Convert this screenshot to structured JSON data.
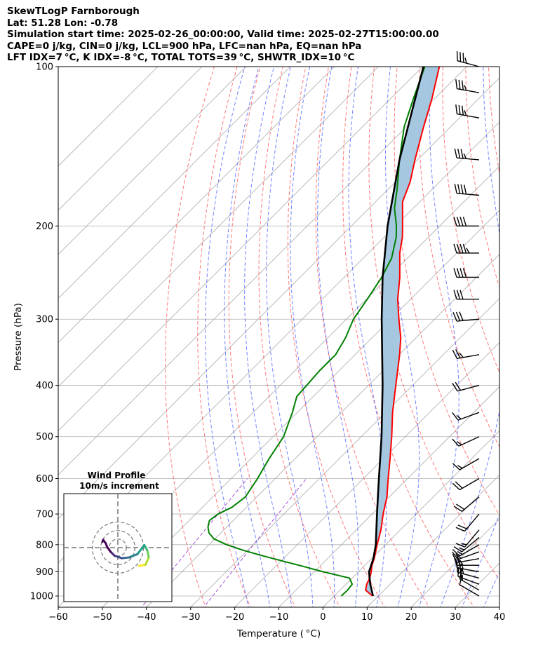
{
  "header": {
    "line1": "SkewTLogP Farnborough",
    "line2": "Lat: 51.28   Lon: -0.78",
    "line3": "Simulation start time: 2025-02-26_00:00:00, Valid time: 2025-02-27T15:00:00.00",
    "line4": "CAPE=0 j/kg, CIN=0 j/kg, LCL=900 hPa, LFC=nan hPa, EQ=nan hPa",
    "line5": "LFT IDX=7 °C, K IDX=-8 °C, TOTAL TOTS=39 °C, SHWTR_IDX=10 °C"
  },
  "chart_data": {
    "type": "skewt-logp",
    "xlabel": "Temperature ( °C)",
    "ylabel": "Pressure (hPa)",
    "xlim": [
      -60,
      40
    ],
    "ylim": [
      1050,
      100
    ],
    "x_ticks": [
      "−60",
      "−50",
      "−40",
      "−30",
      "−20",
      "−10",
      "0",
      "10",
      "20",
      "30",
      "40"
    ],
    "x_tick_values": [
      -60,
      -50,
      -40,
      -30,
      -20,
      -10,
      0,
      10,
      20,
      30,
      40
    ],
    "y_ticks": [
      1000,
      900,
      800,
      700,
      600,
      500,
      400,
      300,
      200,
      100
    ],
    "y_scale": "log",
    "colors": {
      "temperature": "#ff0000",
      "dewpoint": "#008000",
      "parcel": "#000000",
      "shading": "#a0c4de",
      "dry_adiabat": "#ff6060",
      "moist_adiabat": "#5a6cff",
      "isotherm": "#aaaaaa",
      "mixing_ratio": "#9933cc"
    },
    "temperature": {
      "pressure": [
        1000,
        975,
        950,
        925,
        900,
        875,
        850,
        800,
        750,
        700,
        650,
        600,
        550,
        500,
        450,
        400,
        350,
        325,
        300,
        275,
        250,
        225,
        210,
        200,
        180,
        165,
        150,
        130,
        115,
        100
      ],
      "values": [
        8.7,
        5.8,
        4.7,
        4.0,
        2.9,
        1.6,
        0.6,
        -1.9,
        -4.4,
        -7.5,
        -10.5,
        -14.4,
        -18.5,
        -23.1,
        -28.4,
        -33.8,
        -39.9,
        -43.5,
        -48.1,
        -52.9,
        -57.4,
        -62.9,
        -65.9,
        -68.4,
        -73.9,
        -76.7,
        -80.6,
        -86.1,
        -90.6,
        -96.2
      ]
    },
    "dewpoint": {
      "pressure": [
        1000,
        975,
        950,
        925,
        900,
        880,
        860,
        840,
        820,
        800,
        780,
        760,
        740,
        720,
        700,
        680,
        650,
        600,
        550,
        500,
        450,
        420,
        400,
        375,
        350,
        325,
        300,
        275,
        250,
        230,
        210,
        200,
        185,
        170,
        150,
        130,
        115,
        100
      ],
      "values": [
        1.6,
        1.7,
        1.4,
        -0.6,
        -8.0,
        -13.5,
        -19.3,
        -25.2,
        -30.9,
        -36.0,
        -40.2,
        -42.7,
        -44.3,
        -45.4,
        -44.9,
        -43.3,
        -42.6,
        -44.0,
        -45.9,
        -47.6,
        -51.1,
        -53.7,
        -54.0,
        -54.4,
        -54.4,
        -56.0,
        -58.4,
        -59.8,
        -61.5,
        -63.6,
        -67.3,
        -69.8,
        -74.3,
        -78.1,
        -84.1,
        -90.5,
        -94.8,
        -99.5
      ]
    },
    "parcel": {
      "pressure": [
        1000,
        950,
        900,
        850,
        800,
        700,
        600,
        500,
        400,
        300,
        250,
        200,
        150,
        100
      ],
      "values": [
        8.8,
        5.5,
        2.4,
        0.4,
        -2.2,
        -8.9,
        -16.5,
        -25.4,
        -36.8,
        -52.0,
        -61.3,
        -71.8,
        -84.1,
        -99.8
      ]
    },
    "cape_cin_shading": "between parcel and temperature profiles",
    "wind_barbs": {
      "pressure": [
        1000,
        975,
        950,
        925,
        900,
        875,
        850,
        825,
        800,
        775,
        750,
        700,
        650,
        600,
        550,
        500,
        450,
        400,
        350,
        300,
        275,
        250,
        225,
        200,
        175,
        150,
        125,
        112,
        100
      ],
      "speed_kt": [
        10,
        15,
        20,
        25,
        25,
        25,
        20,
        15,
        15,
        15,
        15,
        20,
        20,
        20,
        15,
        15,
        15,
        20,
        25,
        30,
        30,
        40,
        45,
        40,
        40,
        35,
        35,
        35,
        35
      ],
      "direction_deg": [
        300,
        300,
        290,
        285,
        280,
        270,
        260,
        250,
        240,
        230,
        220,
        220,
        230,
        240,
        240,
        245,
        250,
        255,
        260,
        265,
        270,
        270,
        270,
        270,
        275,
        275,
        280,
        280,
        285
      ]
    },
    "hodograph": {
      "title": "Wind Profile",
      "subtitle": "10m/s increment",
      "rings_ms": [
        10,
        20,
        30
      ],
      "u_ms": [
        5.2,
        6.8,
        7.6,
        7.2,
        6.5,
        4.8,
        2.8,
        1.0,
        -0.8,
        -1.8,
        -2.6,
        -3.0,
        -3.6,
        -3.8
      ],
      "v_ms": [
        -4.5,
        -4.2,
        -2.4,
        -0.6,
        0.6,
        -1.6,
        -2.4,
        -2.6,
        -2.0,
        -1.0,
        0.1,
        1.1,
        1.9,
        1.4
      ]
    }
  }
}
